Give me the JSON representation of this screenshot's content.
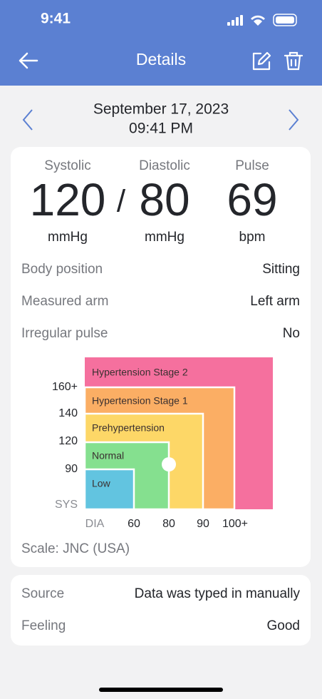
{
  "status_bar": {
    "time": "9:41"
  },
  "nav": {
    "title": "Details"
  },
  "date": {
    "day": "September 17, 2023",
    "time": "09:41 PM"
  },
  "reading": {
    "systolic": {
      "label": "Systolic",
      "value": "120",
      "unit": "mmHg"
    },
    "separator": "/",
    "diastolic": {
      "label": "Diastolic",
      "value": "80",
      "unit": "mmHg"
    },
    "pulse": {
      "label": "Pulse",
      "value": "69",
      "unit": "bpm"
    }
  },
  "details": [
    {
      "label": "Body position",
      "value": "Sitting"
    },
    {
      "label": "Measured arm",
      "value": "Left arm"
    },
    {
      "label": "Irregular pulse",
      "value": "No"
    }
  ],
  "bp_chart": {
    "zones": [
      "Hypertension Stage 2",
      "Hypertension Stage 1",
      "Prehypertension",
      "Normal",
      "Low"
    ],
    "y_axis": {
      "title": "SYS",
      "ticks": [
        "160+",
        "140",
        "120",
        "90"
      ]
    },
    "x_axis": {
      "title": "DIA",
      "ticks": [
        "60",
        "80",
        "90",
        "100+"
      ]
    },
    "scale": "Scale: JNC (USA)"
  },
  "info": [
    {
      "label": "Source",
      "value": "Data was typed in manually"
    },
    {
      "label": "Feeling",
      "value": "Good"
    }
  ]
}
